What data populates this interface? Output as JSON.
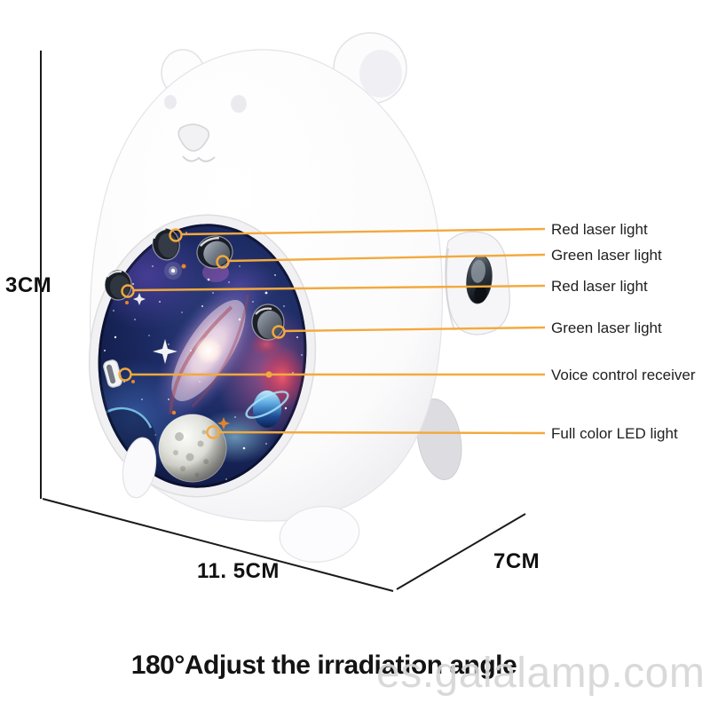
{
  "callouts": [
    {
      "label": "Red laser light"
    },
    {
      "label": "Green laser light"
    },
    {
      "label": "Red laser light"
    },
    {
      "label": "Green laser light"
    },
    {
      "label": "Voice control receiver"
    },
    {
      "label": "Full color LED light"
    }
  ],
  "dimensions": {
    "height": "3CM",
    "width": "11. 5CM",
    "depth": "7CM"
  },
  "caption": "180°Adjust the irradiation angle",
  "watermark": "es.galalamp.com",
  "colors": {
    "callout_line": "#F3A93C",
    "dimension_line": "#1A1A1A",
    "caption_text": "#141414",
    "watermark_text": "#D6D6D6"
  }
}
